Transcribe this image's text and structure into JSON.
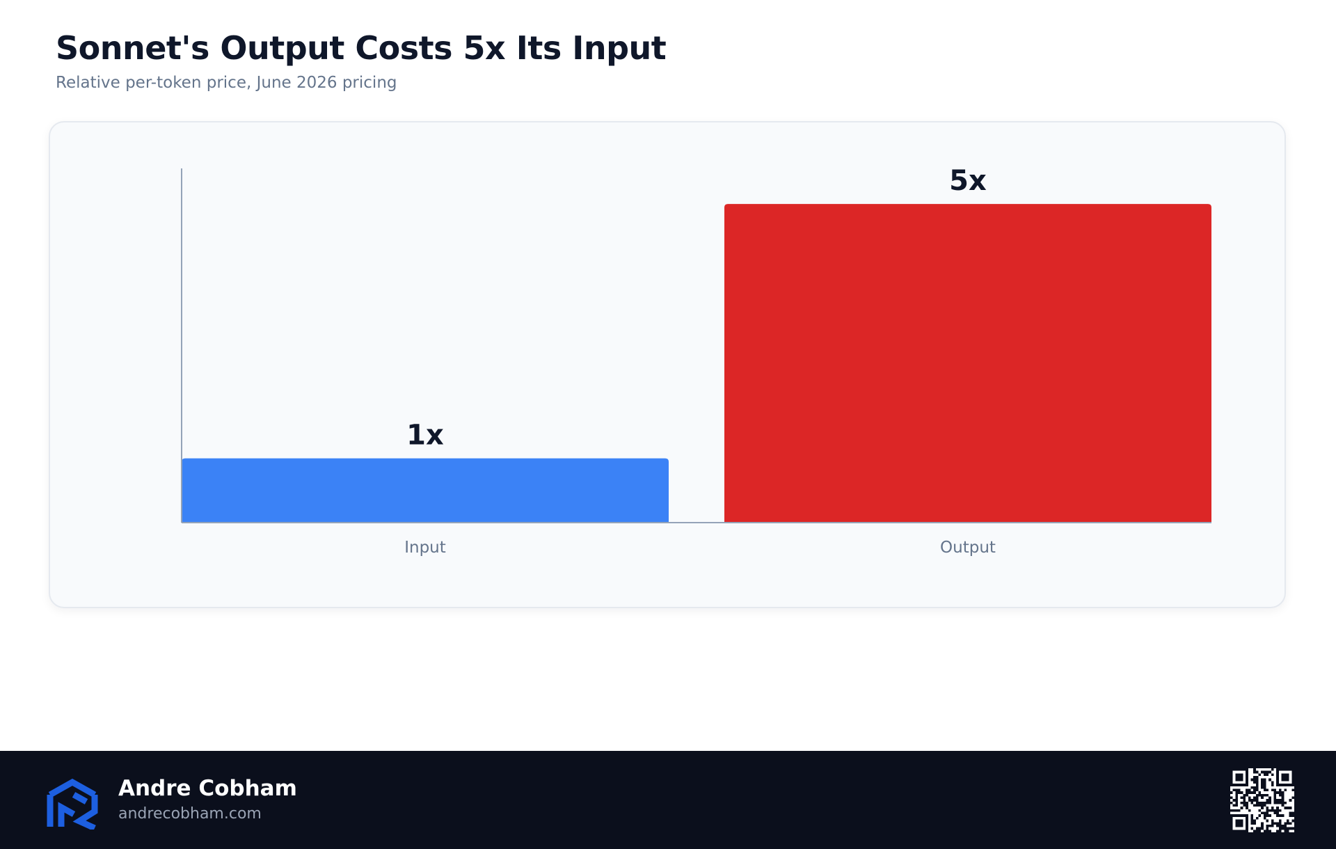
{
  "header": {
    "title": "Sonnet's Output Costs 5x Its Input",
    "subtitle": "Relative per-token price, June 2026 pricing"
  },
  "chart_data": {
    "type": "bar",
    "title": "Sonnet's Output Costs 5x Its Input",
    "subtitle": "Relative per-token price, June 2026 pricing",
    "categories": [
      "Input",
      "Output"
    ],
    "values": [
      1,
      5
    ],
    "data_labels": [
      "1x",
      "5x"
    ],
    "colors": [
      "#3b82f6",
      "#dc2626"
    ],
    "xlabel": "",
    "ylabel": "",
    "ylim": [
      0,
      5.45
    ],
    "grid": false,
    "legend": "none"
  },
  "footer": {
    "author_name": "Andre Cobham",
    "website": "andrecobham.com",
    "logo_icon": "cube-logo-icon",
    "qr_icon": "qr-code-icon"
  }
}
